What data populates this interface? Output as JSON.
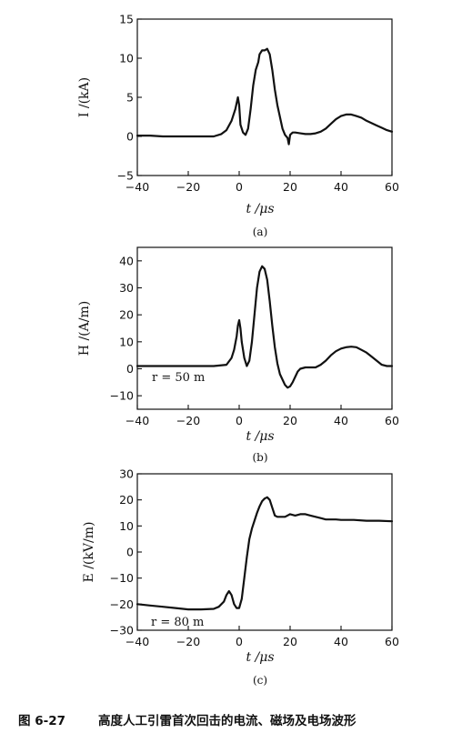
{
  "figure": {
    "caption_number": "图 6-27",
    "caption_text": "高度人工引雷首次回击的电流、磁场及电场波形"
  },
  "chart_data": [
    {
      "type": "line",
      "panel_label": "(a)",
      "xlabel": "t /μs",
      "ylabel": "I /(kA)",
      "xlim": [
        -40,
        60
      ],
      "ylim": [
        -5,
        15
      ],
      "xticks": [
        -40,
        -20,
        0,
        20,
        40,
        60
      ],
      "yticks": [
        -5,
        0,
        5,
        10,
        15
      ],
      "xtick_labels": [
        "−40",
        "−20",
        "0",
        "20",
        "40",
        "60"
      ],
      "ytick_labels": [
        "−5",
        "0",
        "5",
        "10",
        "15"
      ],
      "annotation": "",
      "series": [
        {
          "x": [
            -40,
            -35,
            -30,
            -25,
            -20,
            -15,
            -10,
            -7,
            -5,
            -3,
            -1.5,
            -0.5,
            0,
            0.5,
            1.5,
            2.5,
            3.5,
            4.5,
            5.5,
            6.5,
            7.5,
            8,
            9,
            10,
            11,
            12,
            13,
            14,
            15,
            16,
            17,
            18,
            19,
            19.5,
            20,
            21,
            22,
            24,
            26,
            28,
            30,
            32,
            34,
            36,
            38,
            40,
            42,
            44,
            46,
            48,
            50,
            52,
            54,
            56,
            58,
            60
          ],
          "y": [
            0.1,
            0.1,
            0.0,
            0.0,
            0.0,
            0.0,
            0.0,
            0.3,
            0.8,
            2.0,
            3.5,
            5.0,
            4.0,
            1.5,
            0.5,
            0.2,
            1.0,
            3.5,
            6.5,
            8.5,
            9.5,
            10.5,
            11.0,
            11.0,
            11.2,
            10.5,
            8.5,
            6.0,
            4.0,
            2.5,
            1.0,
            0.2,
            -0.2,
            -1.0,
            0.2,
            0.5,
            0.5,
            0.4,
            0.3,
            0.3,
            0.4,
            0.6,
            1.0,
            1.6,
            2.2,
            2.6,
            2.8,
            2.8,
            2.6,
            2.4,
            2.0,
            1.7,
            1.4,
            1.1,
            0.8,
            0.6
          ]
        }
      ]
    },
    {
      "type": "line",
      "panel_label": "(b)",
      "xlabel": "t /μs",
      "ylabel": "H /(A/m)",
      "xlim": [
        -40,
        60
      ],
      "ylim": [
        -15,
        45
      ],
      "xticks": [
        -40,
        -20,
        0,
        20,
        40,
        60
      ],
      "yticks": [
        -10,
        0,
        10,
        20,
        30,
        40
      ],
      "xtick_labels": [
        "−40",
        "−20",
        "0",
        "20",
        "40",
        "60"
      ],
      "ytick_labels": [
        "−10",
        "0",
        "10",
        "20",
        "30",
        "40"
      ],
      "annotation": "r = 50 m",
      "series": [
        {
          "x": [
            -40,
            -30,
            -20,
            -10,
            -5,
            -3,
            -2,
            -1,
            -0.5,
            0,
            0.5,
            1,
            2,
            3,
            4,
            5,
            6,
            7,
            8,
            9,
            10,
            11,
            12,
            13,
            14,
            15,
            16,
            17,
            18,
            19,
            20,
            21,
            22,
            23,
            24,
            26,
            28,
            30,
            32,
            34,
            36,
            38,
            40,
            42,
            44,
            46,
            48,
            50,
            52,
            54,
            56,
            58,
            60
          ],
          "y": [
            1,
            1,
            1,
            1,
            1.5,
            4,
            7,
            12,
            16,
            18,
            15,
            10,
            4,
            1,
            3,
            10,
            20,
            30,
            36,
            38,
            37,
            33,
            25,
            16,
            8,
            2,
            -2,
            -4,
            -6,
            -7,
            -6.5,
            -5,
            -3,
            -1,
            0,
            0.5,
            0.5,
            0.5,
            1.5,
            3,
            5,
            6.5,
            7.5,
            8,
            8.2,
            8,
            7,
            6,
            4.5,
            3,
            1.5,
            1,
            1
          ]
        }
      ]
    },
    {
      "type": "line",
      "panel_label": "(c)",
      "xlabel": "t /μs",
      "ylabel": "E /(kV/m)",
      "xlim": [
        -40,
        60
      ],
      "ylim": [
        -30,
        30
      ],
      "xticks": [
        -40,
        -20,
        0,
        20,
        40,
        60
      ],
      "yticks": [
        -30,
        -20,
        -10,
        0,
        10,
        20,
        30
      ],
      "xtick_labels": [
        "−40",
        "−20",
        "0",
        "20",
        "40",
        "60"
      ],
      "ytick_labels": [
        "−30",
        "−20",
        "−10",
        "0",
        "10",
        "20",
        "30"
      ],
      "annotation": "r = 80 m",
      "series": [
        {
          "x": [
            -40,
            -35,
            -30,
            -25,
            -20,
            -15,
            -10,
            -8,
            -6,
            -5,
            -4,
            -3,
            -2,
            -1,
            0,
            1,
            2,
            3,
            4,
            5,
            6,
            7,
            8,
            9,
            10,
            11,
            12,
            13,
            14,
            15,
            16,
            18,
            20,
            22,
            24,
            26,
            28,
            30,
            32,
            34,
            36,
            38,
            40,
            45,
            50,
            55,
            60
          ],
          "y": [
            -20,
            -20.5,
            -21,
            -21.5,
            -22,
            -22,
            -21.8,
            -21,
            -19,
            -16.5,
            -15,
            -16.5,
            -20,
            -21.5,
            -21.5,
            -18,
            -10,
            -2,
            5,
            9,
            12,
            15,
            17.5,
            19.5,
            20.5,
            21,
            20,
            17,
            14,
            13.5,
            13.5,
            13.5,
            14.5,
            14,
            14.5,
            14.5,
            14,
            13.5,
            13,
            12.5,
            12.5,
            12.5,
            12.3,
            12.3,
            12,
            12,
            11.8
          ]
        }
      ]
    }
  ]
}
